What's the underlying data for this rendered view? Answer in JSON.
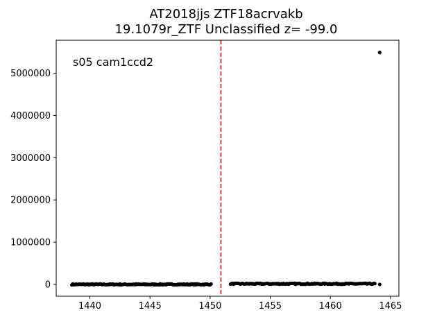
{
  "chart_data": {
    "type": "scatter",
    "title_line1": "AT2018jjs  ZTF18acrvakb",
    "title_line2": "19.1079r_ZTF Unclassified z= -99.0",
    "annotation": "s05 cam1ccd2",
    "xlabel": "",
    "ylabel": "",
    "xlim": [
      1437.2,
      1465.7
    ],
    "ylim": [
      -280000,
      5780000
    ],
    "xticks": [
      1440,
      1445,
      1450,
      1455,
      1460,
      1465
    ],
    "yticks": [
      0,
      1000000,
      2000000,
      3000000,
      4000000,
      5000000
    ],
    "vline_x": 1450.9,
    "vline_color": "#e00000",
    "marker_color": "#000000",
    "grid": false,
    "segments": [
      {
        "x_start": 1438.5,
        "x_end": 1450.1,
        "step": 0.0833,
        "baseline": 0,
        "noise": 12000
      },
      {
        "x_start": 1451.7,
        "x_end": 1463.7,
        "step": 0.0833,
        "baseline": 15000,
        "noise": 12000
      }
    ],
    "outliers": [
      {
        "x": 1464.1,
        "y": 5490000
      },
      {
        "x": 1464.1,
        "y": 0
      }
    ]
  }
}
